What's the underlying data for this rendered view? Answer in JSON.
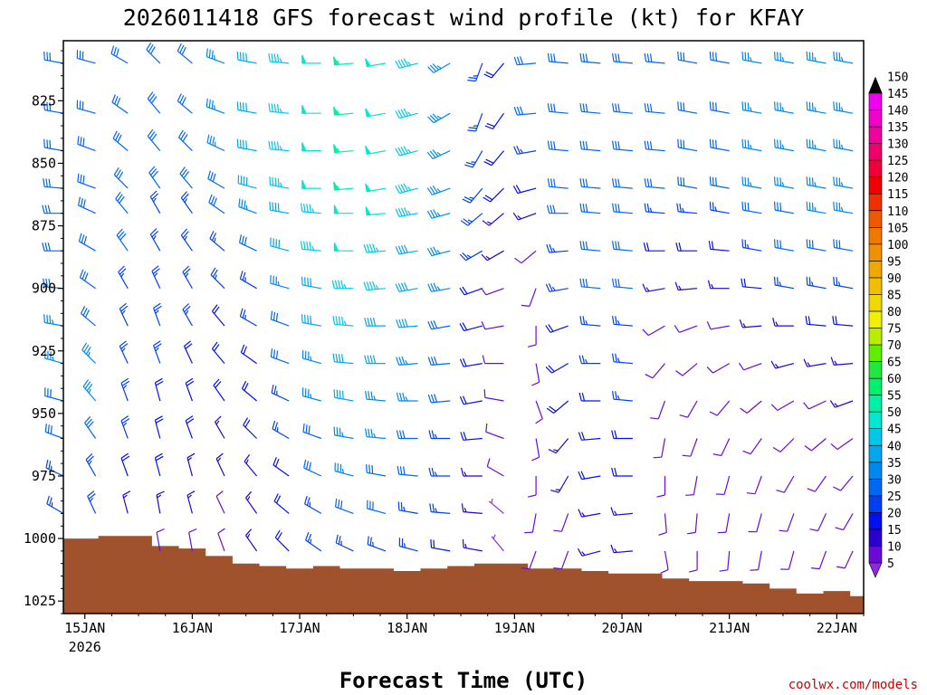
{
  "chart_data": {
    "type": "wind-barb time-height profile",
    "title": "2026011418 GFS forecast wind profile (kt) for KFAY",
    "xlabel": "Forecast Time (UTC)",
    "ylabel": "",
    "credit": "coolwx.com/models",
    "x_tick_labels": [
      "15JAN",
      "16JAN",
      "17JAN",
      "18JAN",
      "19JAN",
      "20JAN",
      "21JAN",
      "22JAN"
    ],
    "x_year_label": "2026",
    "x_range_days": [
      -0.2,
      7.25
    ],
    "y_tick_labels": [
      "825",
      "850",
      "875",
      "900",
      "925",
      "950",
      "975",
      "1000",
      "1025"
    ],
    "y_range_hpa": [
      801,
      1030
    ],
    "levels_hpa": [
      810,
      830,
      845,
      860,
      870,
      885,
      900,
      915,
      930,
      945,
      960,
      975,
      990,
      1005
    ],
    "colorbar": {
      "unit": "kt",
      "labels": [
        "5",
        "10",
        "15",
        "20",
        "25",
        "30",
        "35",
        "40",
        "45",
        "50",
        "55",
        "60",
        "65",
        "70",
        "75",
        "80",
        "85",
        "90",
        "95",
        "100",
        "105",
        "110",
        "115",
        "120",
        "125",
        "130",
        "135",
        "140",
        "145",
        "150"
      ],
      "colors": [
        "#8a2be2",
        "#6a0ad8",
        "#2a00cc",
        "#0010ee",
        "#0040f0",
        "#0066f4",
        "#0088ee",
        "#00a8ee",
        "#00c8e8",
        "#00e8d0",
        "#00f0a8",
        "#00f070",
        "#20e840",
        "#60ee00",
        "#b8ee00",
        "#f0f000",
        "#f0d800",
        "#f0c000",
        "#f0a800",
        "#f09000",
        "#f07800",
        "#f05800",
        "#f03000",
        "#f00000",
        "#f00038",
        "#f0006a",
        "#f0009c",
        "#f000c8",
        "#f000f0",
        "#f050f0"
      ]
    },
    "surface_pressure": {
      "days": [
        0.0,
        0.25,
        0.5,
        0.75,
        1.0,
        1.25,
        1.5,
        1.75,
        2.0,
        2.25,
        2.5,
        2.75,
        3.0,
        3.25,
        3.5,
        3.75,
        4.0,
        4.25,
        4.5,
        4.75,
        5.0,
        5.25,
        5.5,
        5.75,
        6.0,
        6.25,
        6.5,
        6.75,
        7.0,
        7.25
      ],
      "hpa": [
        1000,
        999,
        999,
        1003,
        1004,
        1007,
        1010,
        1011,
        1012,
        1011,
        1012,
        1012,
        1013,
        1012,
        1011,
        1010,
        1010,
        1012,
        1012,
        1013,
        1014,
        1014,
        1016,
        1017,
        1017,
        1018,
        1020,
        1022,
        1021,
        1023
      ],
      "fill_color": "#a0522d"
    },
    "barb_columns": [
      {
        "day": -0.2,
        "dir": [
          280,
          280,
          280,
          275,
          270,
          270,
          275,
          280,
          285,
          285,
          290,
          295,
          300,
          300
        ],
        "spd": [
          30,
          30,
          30,
          30,
          30,
          30,
          30,
          35,
          35,
          30,
          30,
          25,
          25,
          25
        ]
      },
      {
        "day": 0.1,
        "dir": [
          285,
          285,
          290,
          290,
          295,
          300,
          305,
          310,
          315,
          320,
          325,
          330,
          335,
          335
        ],
        "spd": [
          30,
          30,
          30,
          30,
          30,
          30,
          30,
          30,
          35,
          35,
          30,
          25,
          25,
          25
        ]
      },
      {
        "day": 0.4,
        "dir": [
          300,
          305,
          310,
          315,
          320,
          325,
          330,
          335,
          335,
          340,
          340,
          340,
          345,
          350
        ],
        "spd": [
          30,
          30,
          30,
          30,
          30,
          30,
          25,
          25,
          25,
          25,
          25,
          20,
          15,
          10
        ]
      },
      {
        "day": 0.7,
        "dir": [
          315,
          320,
          320,
          325,
          330,
          330,
          335,
          340,
          340,
          345,
          345,
          345,
          350,
          350
        ],
        "spd": [
          30,
          30,
          30,
          30,
          25,
          25,
          25,
          25,
          25,
          20,
          20,
          20,
          15,
          10
        ]
      },
      {
        "day": 1.0,
        "dir": [
          310,
          310,
          315,
          320,
          325,
          325,
          330,
          330,
          335,
          340,
          340,
          345,
          345,
          350
        ],
        "spd": [
          30,
          30,
          30,
          30,
          25,
          25,
          25,
          25,
          20,
          20,
          20,
          15,
          15,
          10
        ]
      },
      {
        "day": 1.3,
        "dir": [
          290,
          290,
          295,
          300,
          305,
          310,
          315,
          320,
          320,
          325,
          330,
          335,
          335,
          340
        ],
        "spd": [
          35,
          35,
          35,
          30,
          30,
          25,
          25,
          20,
          20,
          20,
          15,
          15,
          10,
          10
        ]
      },
      {
        "day": 1.6,
        "dir": [
          280,
          280,
          280,
          285,
          290,
          295,
          300,
          300,
          305,
          310,
          315,
          320,
          325,
          325
        ],
        "spd": [
          40,
          40,
          40,
          40,
          35,
          30,
          25,
          25,
          20,
          20,
          20,
          15,
          15,
          15
        ]
      },
      {
        "day": 1.9,
        "dir": [
          275,
          275,
          275,
          280,
          280,
          285,
          285,
          290,
          290,
          295,
          300,
          305,
          310,
          315
        ],
        "spd": [
          45,
          45,
          45,
          45,
          40,
          40,
          35,
          30,
          30,
          25,
          25,
          20,
          20,
          20
        ]
      },
      {
        "day": 2.2,
        "dir": [
          270,
          270,
          270,
          270,
          275,
          275,
          280,
          280,
          285,
          285,
          290,
          295,
          300,
          305
        ],
        "spd": [
          50,
          50,
          50,
          50,
          45,
          45,
          40,
          40,
          35,
          35,
          30,
          30,
          25,
          25
        ]
      },
      {
        "day": 2.5,
        "dir": [
          265,
          265,
          265,
          265,
          270,
          270,
          270,
          275,
          275,
          280,
          280,
          285,
          290,
          295
        ],
        "spd": [
          55,
          55,
          55,
          55,
          50,
          50,
          45,
          45,
          40,
          40,
          35,
          35,
          30,
          25
        ]
      },
      {
        "day": 2.8,
        "dir": [
          260,
          260,
          260,
          260,
          265,
          265,
          265,
          270,
          270,
          275,
          275,
          280,
          285,
          290
        ],
        "spd": [
          50,
          50,
          50,
          50,
          50,
          45,
          45,
          40,
          40,
          35,
          35,
          30,
          30,
          25
        ]
      },
      {
        "day": 3.1,
        "dir": [
          255,
          255,
          255,
          255,
          260,
          260,
          260,
          265,
          265,
          270,
          270,
          275,
          280,
          285
        ],
        "spd": [
          45,
          45,
          45,
          45,
          45,
          40,
          40,
          40,
          35,
          35,
          30,
          30,
          25,
          25
        ]
      },
      {
        "day": 3.4,
        "dir": [
          240,
          240,
          245,
          250,
          255,
          255,
          260,
          260,
          265,
          265,
          270,
          270,
          275,
          280
        ],
        "spd": [
          35,
          35,
          35,
          35,
          35,
          35,
          35,
          30,
          30,
          30,
          25,
          25,
          25,
          20
        ]
      },
      {
        "day": 3.7,
        "dir": [
          200,
          200,
          210,
          220,
          230,
          240,
          250,
          255,
          260,
          260,
          265,
          270,
          275,
          280
        ],
        "spd": [
          25,
          25,
          25,
          25,
          25,
          25,
          20,
          20,
          20,
          20,
          20,
          15,
          15,
          15
        ]
      },
      {
        "day": 3.9,
        "dir": [
          220,
          215,
          220,
          225,
          230,
          240,
          250,
          260,
          270,
          280,
          290,
          300,
          310,
          320
        ],
        "spd": [
          20,
          20,
          20,
          20,
          15,
          15,
          10,
          10,
          10,
          10,
          10,
          10,
          5,
          5
        ]
      },
      {
        "day": 4.2,
        "dir": [
          265,
          265,
          260,
          255,
          250,
          230,
          200,
          180,
          170,
          160,
          170,
          180,
          190,
          200
        ],
        "spd": [
          30,
          30,
          25,
          20,
          15,
          10,
          10,
          10,
          10,
          10,
          10,
          10,
          10,
          10
        ]
      },
      {
        "day": 4.5,
        "dir": [
          275,
          275,
          275,
          275,
          270,
          265,
          260,
          250,
          240,
          230,
          220,
          210,
          200,
          200
        ],
        "spd": [
          30,
          30,
          30,
          30,
          30,
          25,
          25,
          20,
          20,
          20,
          15,
          15,
          10,
          10
        ]
      },
      {
        "day": 4.8,
        "dir": [
          275,
          275,
          275,
          275,
          275,
          275,
          275,
          275,
          270,
          270,
          265,
          260,
          260,
          255
        ],
        "spd": [
          30,
          30,
          30,
          30,
          30,
          30,
          30,
          25,
          25,
          20,
          20,
          20,
          15,
          15
        ]
      },
      {
        "day": 5.1,
        "dir": [
          275,
          275,
          275,
          275,
          275,
          275,
          275,
          275,
          275,
          275,
          270,
          270,
          265,
          265
        ],
        "spd": [
          30,
          30,
          30,
          30,
          30,
          30,
          30,
          25,
          25,
          25,
          20,
          20,
          15,
          15
        ]
      },
      {
        "day": 5.4,
        "dir": [
          275,
          275,
          275,
          275,
          275,
          270,
          260,
          240,
          220,
          200,
          190,
          180,
          175,
          170
        ],
        "spd": [
          30,
          30,
          30,
          30,
          25,
          20,
          15,
          10,
          10,
          10,
          10,
          10,
          10,
          10
        ]
      },
      {
        "day": 5.7,
        "dir": [
          280,
          280,
          280,
          280,
          275,
          270,
          265,
          250,
          230,
          210,
          200,
          190,
          185,
          180
        ],
        "spd": [
          30,
          30,
          30,
          30,
          25,
          20,
          15,
          10,
          10,
          10,
          10,
          10,
          10,
          10
        ]
      },
      {
        "day": 6.0,
        "dir": [
          280,
          280,
          280,
          280,
          280,
          275,
          270,
          260,
          240,
          220,
          205,
          195,
          190,
          185
        ],
        "spd": [
          30,
          30,
          30,
          30,
          25,
          20,
          15,
          10,
          10,
          10,
          10,
          10,
          10,
          10
        ]
      },
      {
        "day": 6.3,
        "dir": [
          280,
          280,
          280,
          280,
          280,
          280,
          275,
          265,
          250,
          230,
          215,
          200,
          195,
          190
        ],
        "spd": [
          35,
          35,
          35,
          35,
          30,
          25,
          20,
          15,
          10,
          10,
          10,
          10,
          10,
          10
        ]
      },
      {
        "day": 6.6,
        "dir": [
          280,
          280,
          280,
          280,
          280,
          280,
          280,
          270,
          255,
          240,
          225,
          210,
          200,
          195
        ],
        "spd": [
          35,
          35,
          35,
          35,
          30,
          30,
          25,
          15,
          15,
          10,
          10,
          10,
          10,
          10
        ]
      },
      {
        "day": 6.9,
        "dir": [
          280,
          280,
          280,
          280,
          280,
          280,
          280,
          275,
          260,
          245,
          230,
          215,
          205,
          200
        ],
        "spd": [
          35,
          35,
          35,
          35,
          35,
          30,
          25,
          20,
          15,
          10,
          10,
          10,
          10,
          10
        ]
      },
      {
        "day": 7.15,
        "dir": [
          280,
          280,
          280,
          280,
          280,
          280,
          280,
          275,
          265,
          250,
          235,
          220,
          210,
          205
        ],
        "spd": [
          35,
          35,
          35,
          35,
          35,
          30,
          25,
          20,
          15,
          15,
          10,
          10,
          10,
          10
        ]
      }
    ]
  }
}
